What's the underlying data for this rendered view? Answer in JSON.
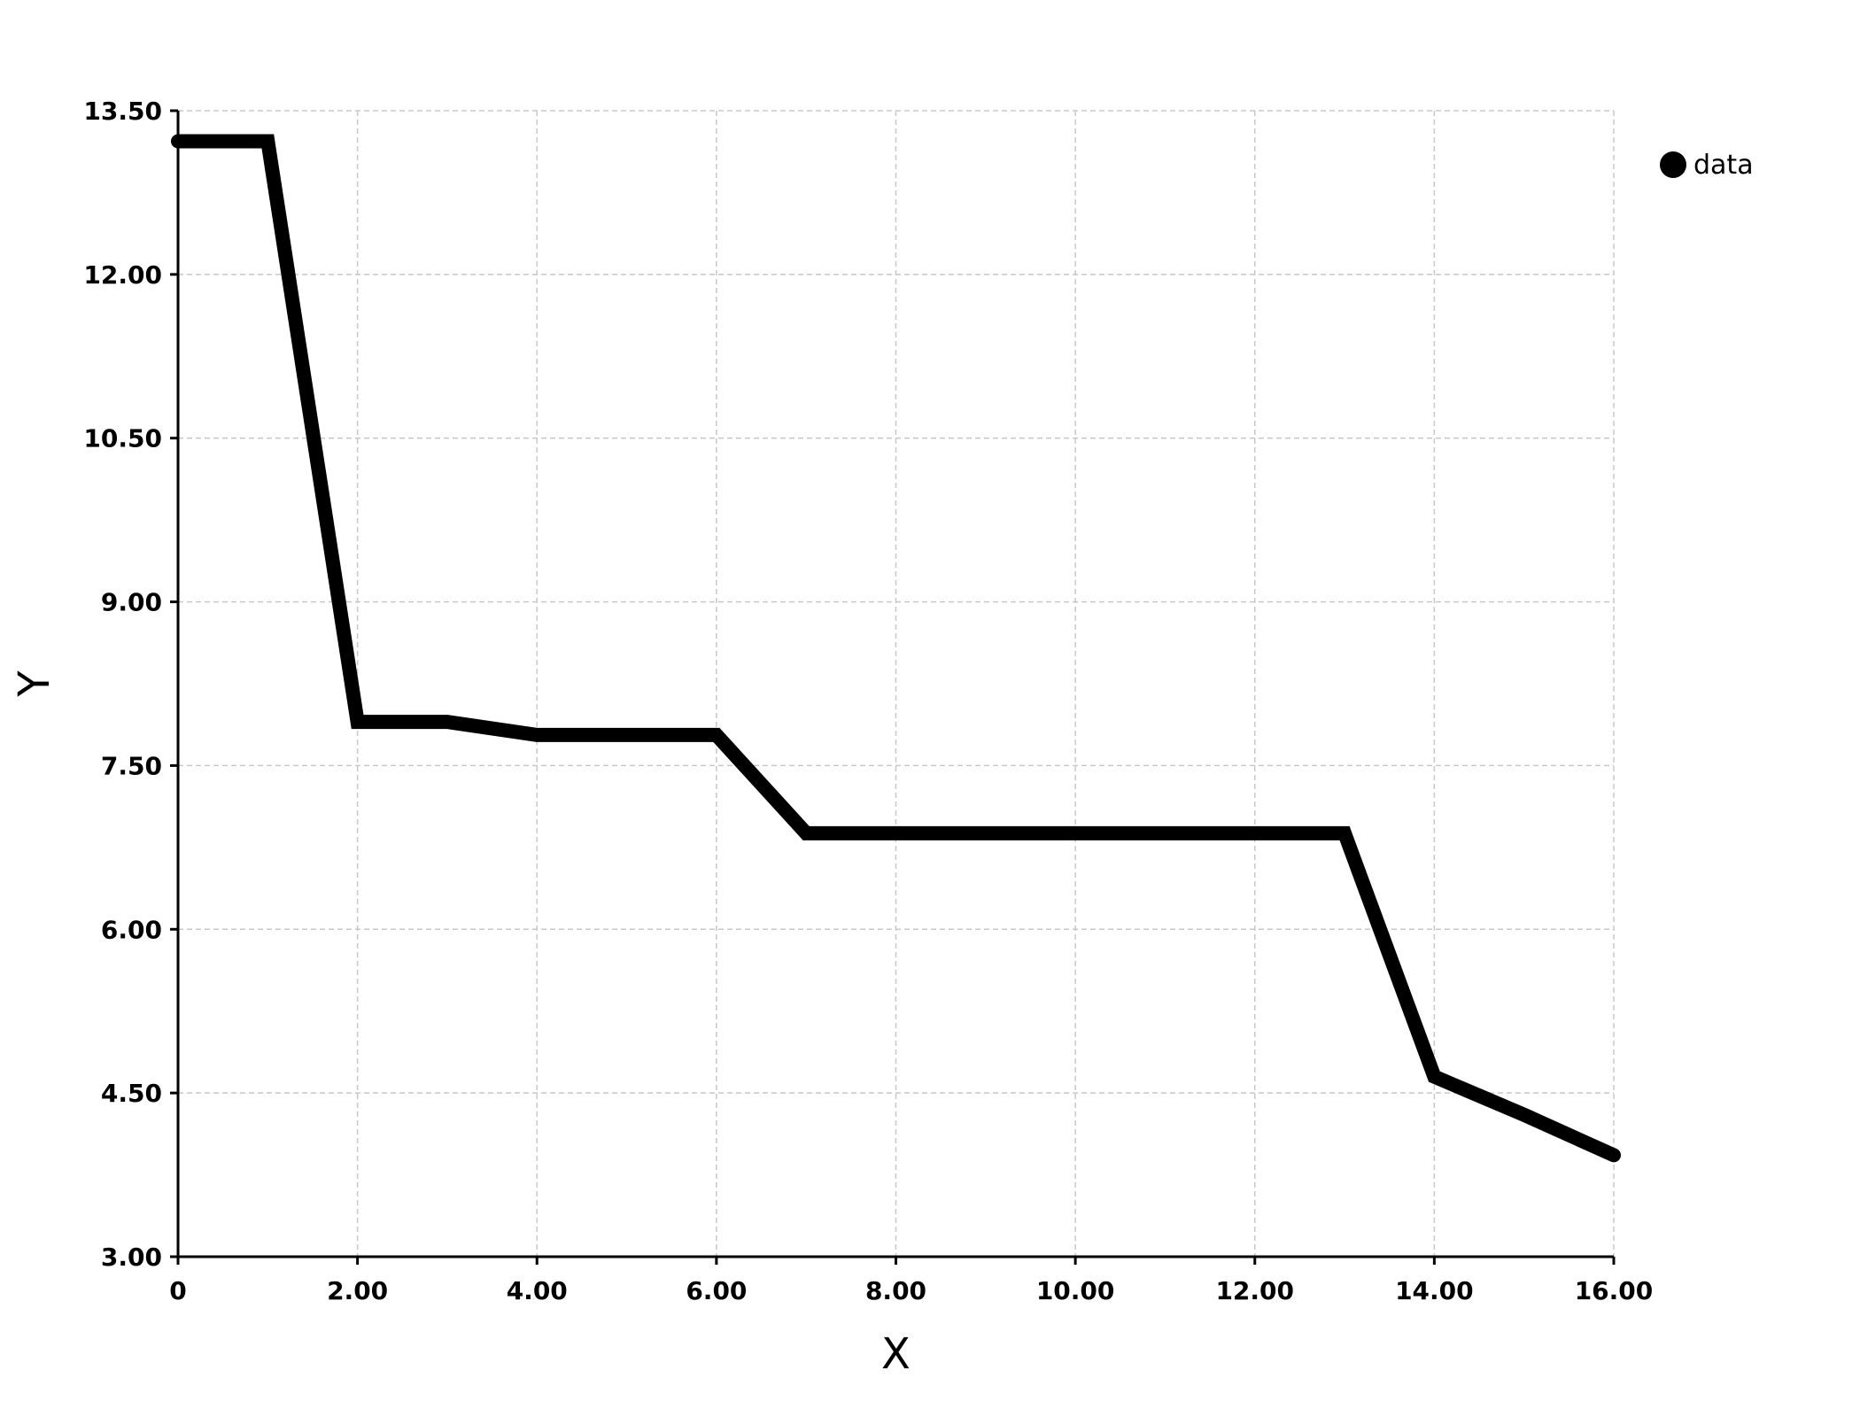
{
  "chart_data": {
    "type": "line",
    "xlabel": "X",
    "ylabel": "Y",
    "xlim": [
      0,
      16
    ],
    "ylim": [
      3,
      13.5
    ],
    "xticks": [
      0,
      2,
      4,
      6,
      8,
      10,
      12,
      14,
      16
    ],
    "xtick_labels": [
      "0",
      "2.00",
      "4.00",
      "6.00",
      "8.00",
      "10.00",
      "12.00",
      "14.00",
      "16.00"
    ],
    "yticks": [
      3,
      4.5,
      6,
      7.5,
      9,
      10.5,
      12,
      13.5
    ],
    "ytick_labels": [
      "3.00",
      "4.50",
      "6.00",
      "7.50",
      "9.00",
      "10.50",
      "12.00",
      "13.50"
    ],
    "grid": true,
    "legend_position": "top-right",
    "series": [
      {
        "name": "data",
        "color": "#000000",
        "x": [
          0,
          1,
          2,
          3,
          4,
          5,
          6,
          7,
          8,
          9,
          10,
          11,
          12,
          13,
          14,
          15,
          16
        ],
        "y": [
          13.22,
          13.22,
          7.9,
          7.9,
          7.78,
          7.78,
          7.78,
          6.88,
          6.88,
          6.88,
          6.88,
          6.88,
          6.88,
          6.88,
          4.65,
          4.3,
          3.93
        ]
      }
    ]
  }
}
